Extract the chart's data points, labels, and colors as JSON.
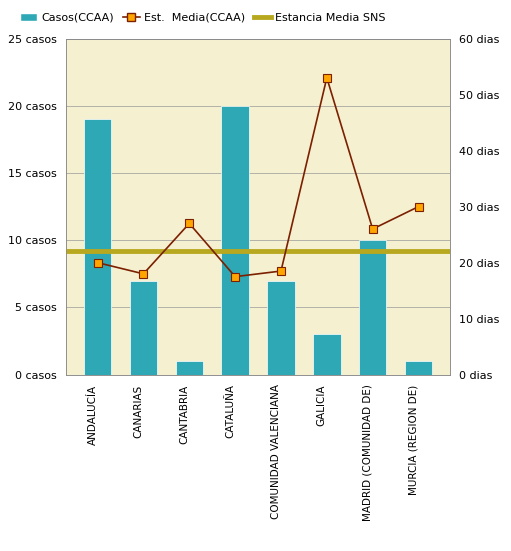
{
  "categories": [
    "ANDALUCÍA",
    "CANARIAS",
    "CANTABRIA",
    "CATALUÑA",
    "COMUNIDAD VALENCIANA",
    "GALICIA",
    "MADRID (COMUNIDAD DE)",
    "MURCIA (REGION DE)"
  ],
  "bar_values": [
    19,
    7,
    1,
    20,
    7,
    3,
    10,
    1
  ],
  "line_values": [
    20.0,
    18.0,
    27.0,
    17.5,
    18.5,
    53.0,
    26.0,
    30.0
  ],
  "sns_value": 22.0,
  "bar_color": "#2fa8b5",
  "line_color": "#7b2000",
  "line_marker_facecolor": "#ffa500",
  "line_marker_edgecolor": "#7b2000",
  "sns_color": "#b8a820",
  "background_color": "#f5f0d0",
  "ylim_left": [
    0,
    25
  ],
  "ylim_right": [
    0,
    60
  ],
  "yticks_left": [
    0,
    5,
    10,
    15,
    20,
    25
  ],
  "yticks_right": [
    0,
    10,
    20,
    30,
    40,
    50,
    60
  ],
  "ytick_labels_left": [
    "0 casos",
    "5 casos",
    "10 casos",
    "15 casos",
    "20 casos",
    "25 casos"
  ],
  "ytick_labels_right": [
    "0 dias",
    "10 dias",
    "20 dias",
    "30 dias",
    "40 dias",
    "50 dias",
    "60 dias"
  ],
  "legend_bar": "Casos(CCAA)",
  "legend_line": "Est.  Media(CCAA)",
  "legend_sns": "Estancia Media SNS"
}
